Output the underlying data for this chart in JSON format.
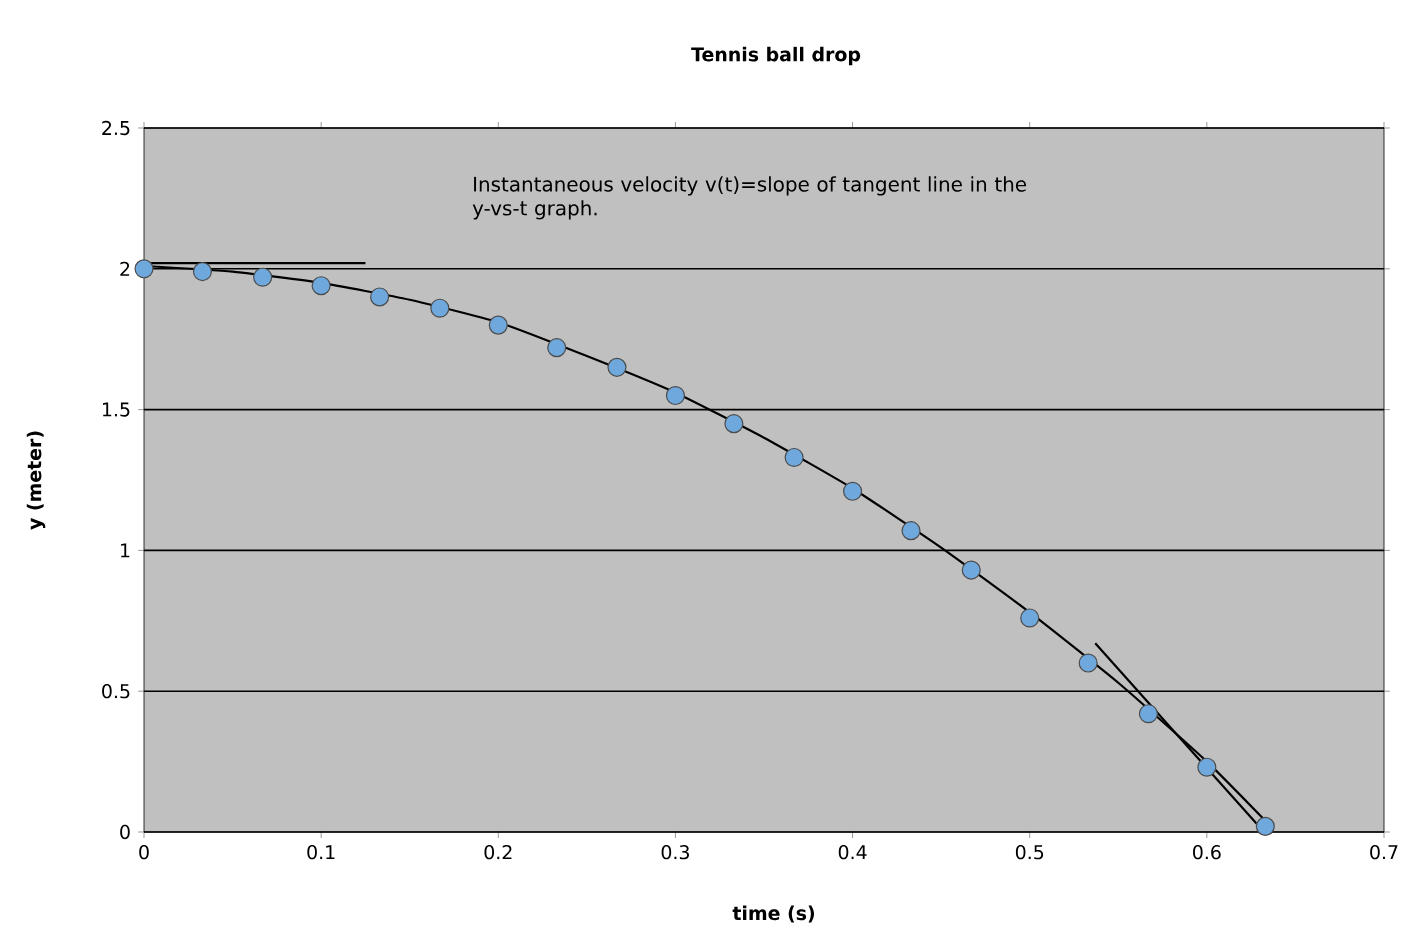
{
  "chart_data": {
    "type": "scatter",
    "title": "Tennis ball drop",
    "xlabel": "time (s)",
    "ylabel": "y (meter)",
    "annotations": [
      "Instantaneous velocity v(t)=slope of tangent line in the y-vs-t graph."
    ],
    "xlim": [
      0,
      0.7
    ],
    "xticks": [
      0,
      0.1,
      0.2,
      0.3,
      0.4,
      0.5,
      0.6,
      0.7
    ],
    "ylim": [
      0,
      2.5
    ],
    "yticks": [
      0,
      0.5,
      1,
      1.5,
      2,
      2.5
    ],
    "grid": "y",
    "series": [
      {
        "type": "line",
        "color": "#000000",
        "marker": "none",
        "x": [
          0,
          0.05,
          0.1,
          0.15,
          0.2,
          0.25,
          0.3,
          0.35,
          0.4,
          0.45,
          0.5,
          0.55,
          0.6,
          0.633
        ],
        "values": [
          2.01,
          1.99,
          1.95,
          1.89,
          1.81,
          1.69,
          1.56,
          1.4,
          1.22,
          1.01,
          0.78,
          0.53,
          0.25,
          0.04
        ]
      },
      {
        "type": "line",
        "color": "#000000",
        "marker": "none",
        "x": [
          0,
          0.125
        ],
        "values": [
          2.02,
          2.02
        ]
      },
      {
        "type": "line",
        "color": "#000000",
        "marker": "none",
        "x": [
          0.537,
          0.628
        ],
        "values": [
          0.67,
          0.03
        ]
      },
      {
        "color": "#6fa8dc",
        "marker": "circle",
        "x": [
          0,
          0.033,
          0.067,
          0.1,
          0.133,
          0.167,
          0.2,
          0.233,
          0.267,
          0.3,
          0.333,
          0.367,
          0.4,
          0.433,
          0.467,
          0.5,
          0.533,
          0.567,
          0.6,
          0.633
        ],
        "values": [
          2.0,
          1.99,
          1.97,
          1.94,
          1.9,
          1.86,
          1.8,
          1.72,
          1.65,
          1.55,
          1.45,
          1.33,
          1.21,
          1.07,
          0.93,
          0.76,
          0.6,
          0.42,
          0.23,
          0.02
        ]
      }
    ]
  }
}
